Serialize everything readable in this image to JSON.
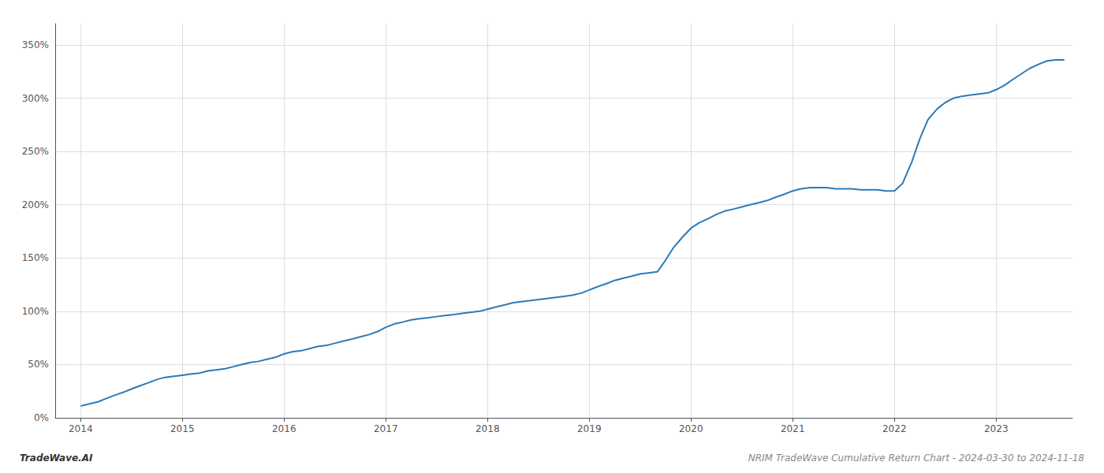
{
  "chart_data": {
    "type": "line",
    "title": "NRIM TradeWave Cumulative Return Chart - 2024-03-30 to 2024-11-18",
    "annotations": [
      "TradeWave.AI"
    ],
    "color": "#2b7bba",
    "x": [
      2014.0,
      2014.08,
      2014.17,
      2014.25,
      2014.33,
      2014.42,
      2014.5,
      2014.58,
      2014.67,
      2014.75,
      2014.83,
      2014.92,
      2015.0,
      2015.08,
      2015.17,
      2015.25,
      2015.33,
      2015.42,
      2015.5,
      2015.58,
      2015.67,
      2015.75,
      2015.83,
      2015.92,
      2016.0,
      2016.08,
      2016.17,
      2016.25,
      2016.33,
      2016.42,
      2016.5,
      2016.58,
      2016.67,
      2016.75,
      2016.83,
      2016.92,
      2017.0,
      2017.08,
      2017.17,
      2017.25,
      2017.33,
      2017.42,
      2017.5,
      2017.58,
      2017.67,
      2017.75,
      2017.83,
      2017.92,
      2018.0,
      2018.08,
      2018.17,
      2018.25,
      2018.33,
      2018.42,
      2018.5,
      2018.58,
      2018.67,
      2018.75,
      2018.83,
      2018.92,
      2019.0,
      2019.08,
      2019.17,
      2019.25,
      2019.33,
      2019.42,
      2019.5,
      2019.58,
      2019.67,
      2019.75,
      2019.83,
      2019.92,
      2020.0,
      2020.08,
      2020.17,
      2020.25,
      2020.33,
      2020.42,
      2020.5,
      2020.58,
      2020.67,
      2020.75,
      2020.83,
      2020.92,
      2021.0,
      2021.08,
      2021.17,
      2021.25,
      2021.33,
      2021.42,
      2021.5,
      2021.58,
      2021.67,
      2021.75,
      2021.83,
      2021.92,
      2022.0,
      2022.08,
      2022.17,
      2022.25,
      2022.33,
      2022.42,
      2022.5,
      2022.58,
      2022.67,
      2022.75,
      2022.83,
      2022.92,
      2023.0,
      2023.08,
      2023.17,
      2023.25,
      2023.33,
      2023.42,
      2023.5,
      2023.58,
      2023.67
    ],
    "values": [
      11,
      13,
      15,
      18,
      21,
      24,
      27,
      30,
      33,
      36,
      38,
      39,
      40,
      41,
      42,
      44,
      45,
      46,
      48,
      50,
      52,
      53,
      55,
      57,
      60,
      62,
      63,
      65,
      67,
      68,
      70,
      72,
      74,
      76,
      78,
      81,
      85,
      88,
      90,
      92,
      93,
      94,
      95,
      96,
      97,
      98,
      99,
      100,
      102,
      104,
      106,
      108,
      109,
      110,
      111,
      112,
      113,
      114,
      115,
      117,
      120,
      123,
      126,
      129,
      131,
      133,
      135,
      136,
      137,
      148,
      160,
      170,
      178,
      183,
      187,
      191,
      194,
      196,
      198,
      200,
      202,
      204,
      207,
      210,
      213,
      215,
      216,
      216,
      216,
      215,
      215,
      215,
      214,
      214,
      214,
      213,
      213,
      220,
      240,
      262,
      280,
      290,
      296,
      300,
      302,
      303,
      304,
      305,
      308,
      312,
      318,
      323,
      328,
      332,
      335,
      336,
      336
    ],
    "xlim": [
      2013.75,
      2023.75
    ],
    "ylim": [
      0,
      370
    ],
    "xticks": [
      2014,
      2015,
      2016,
      2017,
      2018,
      2019,
      2020,
      2021,
      2022,
      2023
    ],
    "yticks": [
      {
        "value": 0,
        "label": "0%"
      },
      {
        "value": 50,
        "label": "50%"
      },
      {
        "value": 100,
        "label": "100%"
      },
      {
        "value": 150,
        "label": "150%"
      },
      {
        "value": 200,
        "label": "200%"
      },
      {
        "value": 250,
        "label": "250%"
      },
      {
        "value": 300,
        "label": "300%"
      },
      {
        "value": 350,
        "label": "350%"
      }
    ],
    "grid": true
  }
}
